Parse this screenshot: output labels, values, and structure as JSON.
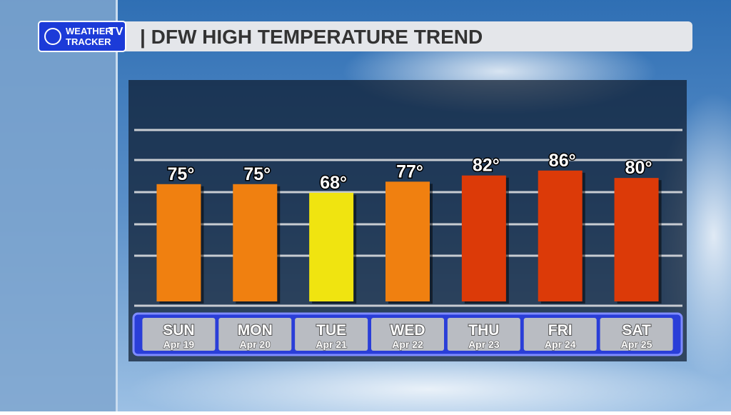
{
  "brand": {
    "line1": "WEATHER",
    "line2": "TRACKER",
    "badge": "TV"
  },
  "chart_data": {
    "type": "bar",
    "title": "| DFW HIGH TEMPERATURE TREND",
    "categories": [
      "SUN",
      "MON",
      "TUE",
      "WED",
      "THU",
      "FRI",
      "SAT"
    ],
    "dates": [
      "Apr 19",
      "Apr 20",
      "Apr 21",
      "Apr 22",
      "Apr 23",
      "Apr 24",
      "Apr 25"
    ],
    "values": [
      75,
      75,
      68,
      77,
      82,
      86,
      80
    ],
    "value_labels": [
      "75°",
      "75°",
      "68°",
      "77°",
      "82°",
      "86°",
      "80°"
    ],
    "colors": [
      "#f08010",
      "#f08010",
      "#f0e410",
      "#f08010",
      "#dc3a08",
      "#dc3a08",
      "#dc3a08"
    ],
    "ylim": [
      -20,
      120
    ]
  }
}
